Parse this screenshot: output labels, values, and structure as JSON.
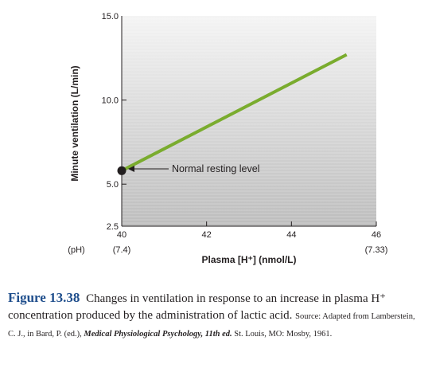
{
  "chart_data": {
    "type": "line",
    "title": "",
    "xlabel": "Plasma [H⁺] (nmol/L)",
    "ylabel": "Minute ventilation (L/min)",
    "xlim": [
      40,
      46
    ],
    "ylim": [
      2.5,
      15.0
    ],
    "x_ticks": [
      {
        "value": 40,
        "label": "40",
        "ph": "(7.4)"
      },
      {
        "value": 42,
        "label": "42",
        "ph": ""
      },
      {
        "value": 44,
        "label": "44",
        "ph": ""
      },
      {
        "value": 46,
        "label": "46",
        "ph": "(7.33)"
      }
    ],
    "ph_label": "(pH)",
    "y_ticks": [
      {
        "value": 2.5,
        "label": "2.5"
      },
      {
        "value": 5.0,
        "label": "5.0"
      },
      {
        "value": 10.0,
        "label": "10.0"
      },
      {
        "value": 15.0,
        "label": "15.0"
      }
    ],
    "series": [
      {
        "color": "#7aac2e",
        "points": [
          [
            40,
            5.8
          ],
          [
            45.3,
            12.7
          ]
        ]
      }
    ],
    "annotation": {
      "text": "Normal resting level",
      "x": 40,
      "y": 5.8
    },
    "grid": true
  },
  "caption": {
    "figure_label": "Figure 13.38",
    "text": "Changes in ventilation in response to an increase in plasma H⁺ concentration produced by the administration of lactic acid.",
    "source": "Source: Adapted from Lamberstein, C. J., in Bard, P. (ed.),",
    "source_title": "Medical Physiological Psychology, 11th ed.",
    "source_tail": "St. Louis, MO: Mosby, 1961."
  }
}
